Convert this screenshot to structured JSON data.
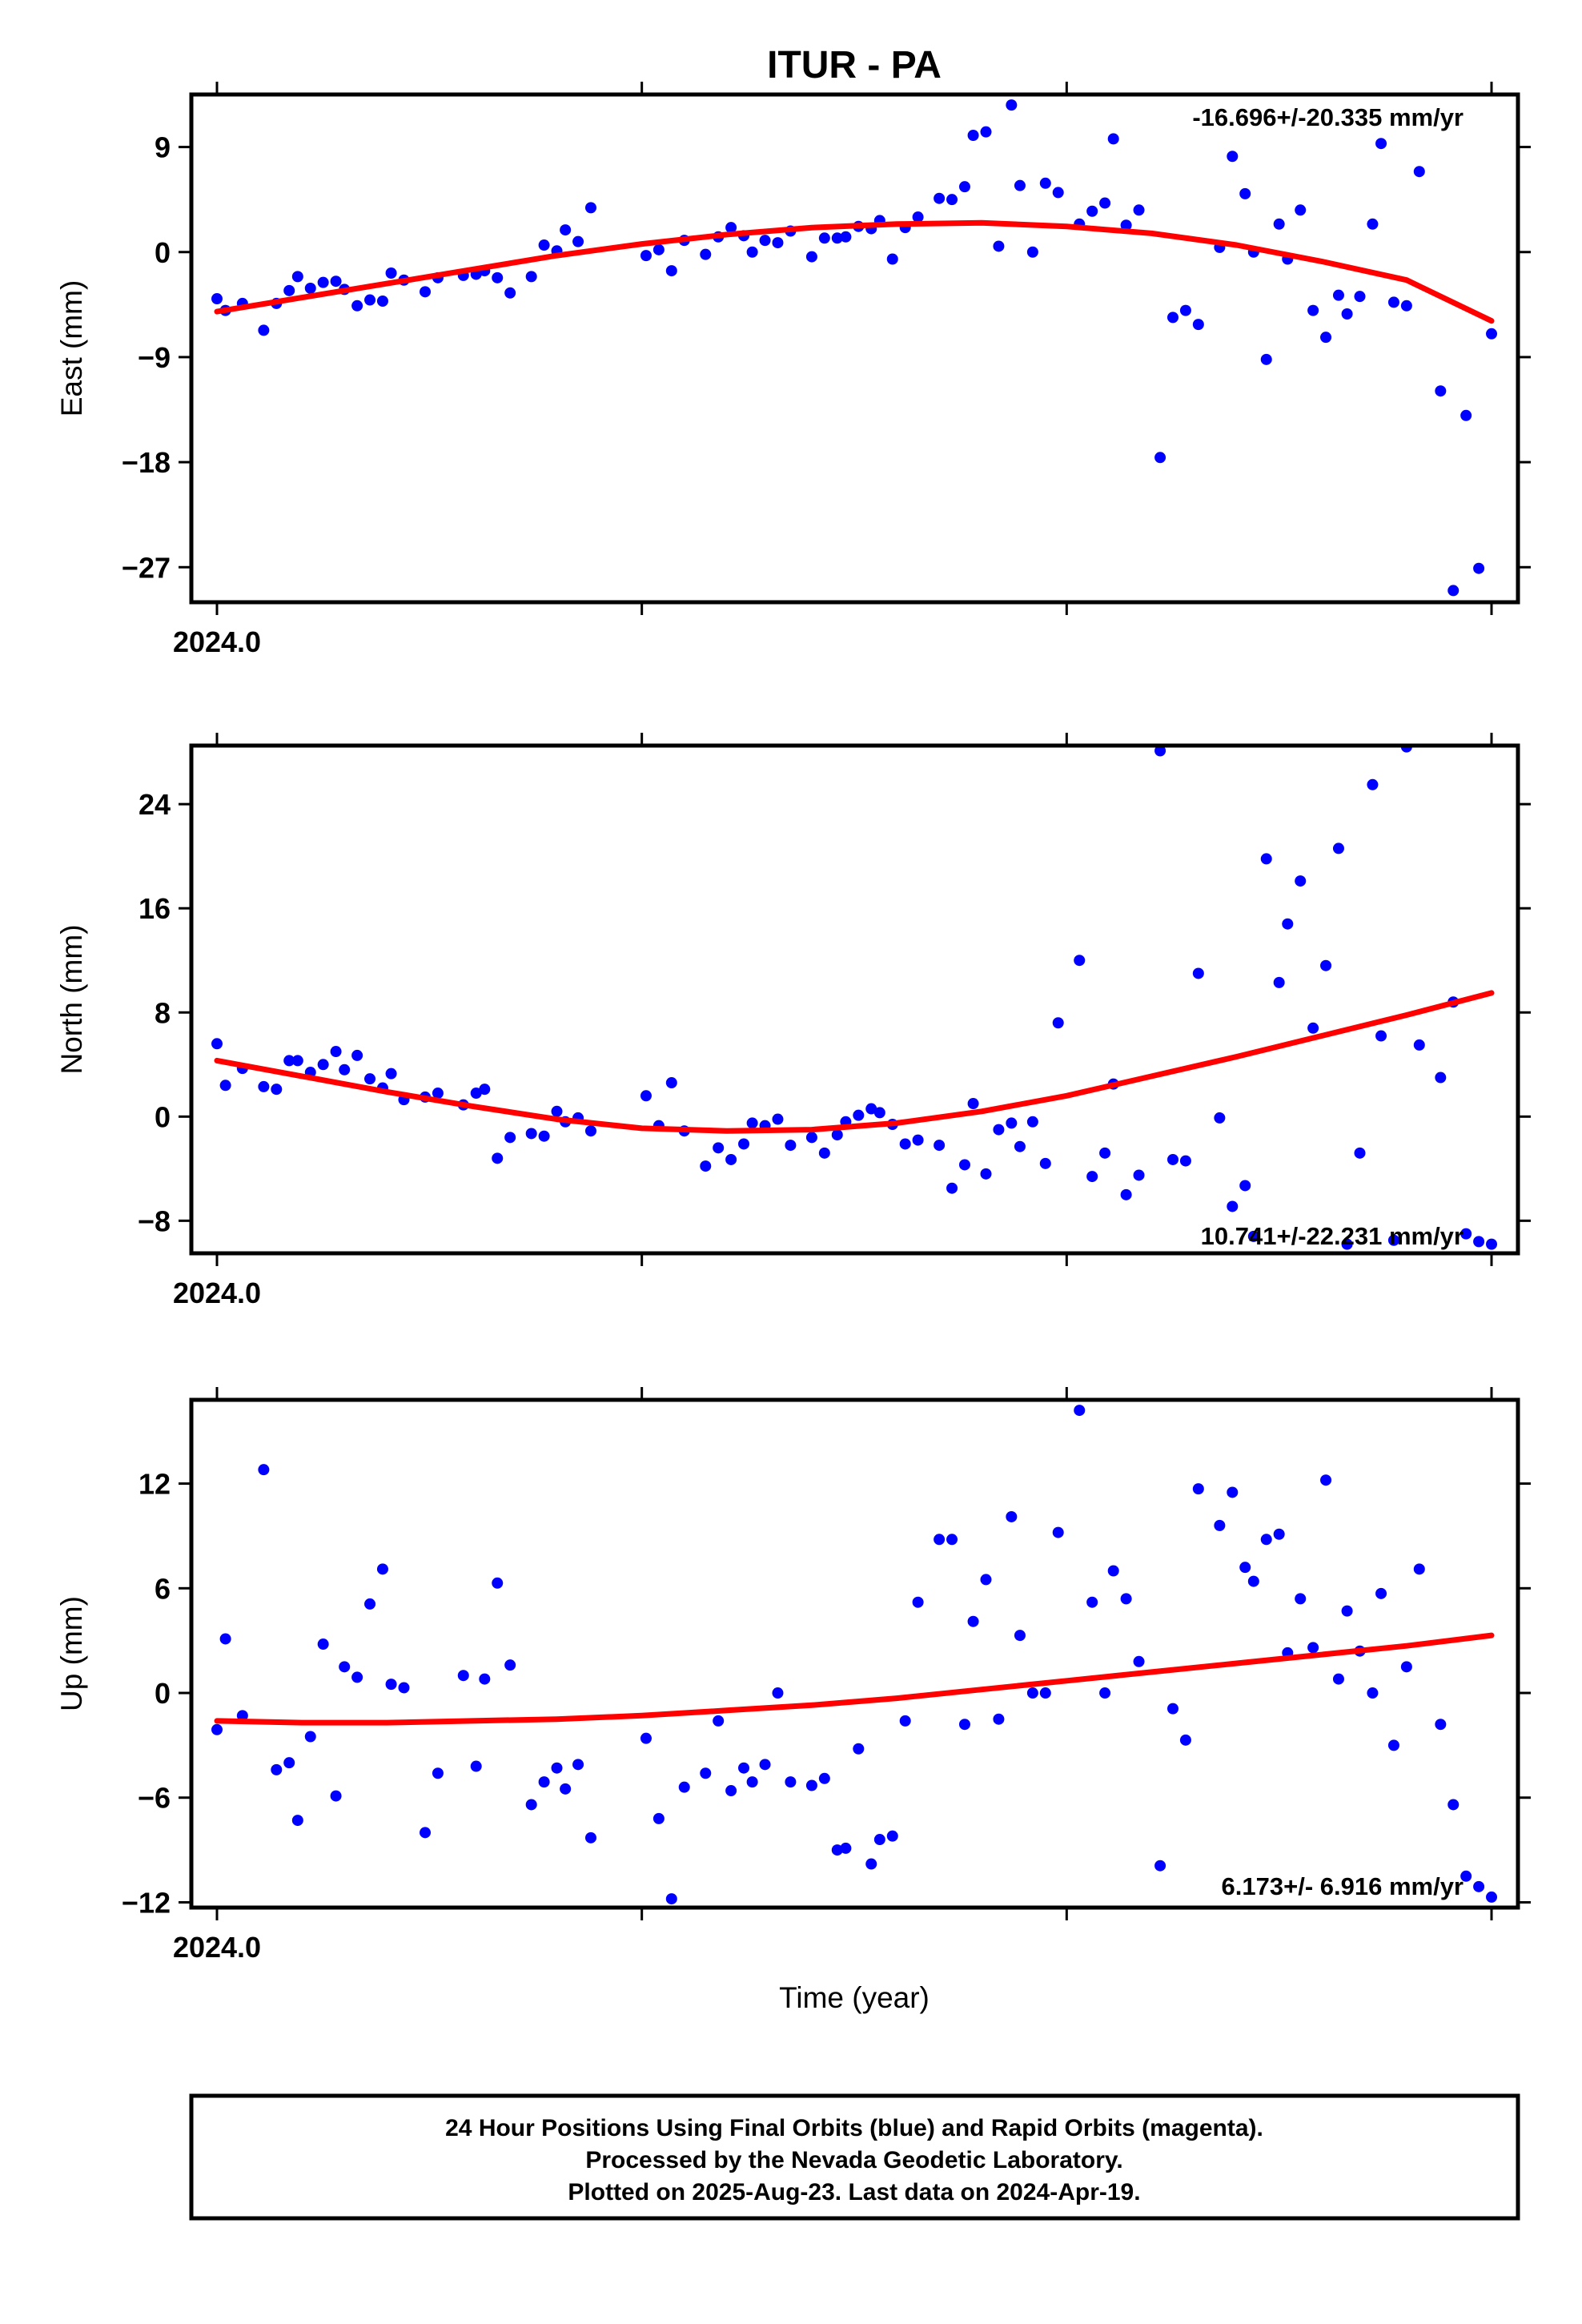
{
  "title": "ITUR - PA",
  "xlabel": "Time (year)",
  "colors": {
    "data": "#0000ff",
    "fit": "#ff0000",
    "frame": "#000000"
  },
  "footer": {
    "line1": "24 Hour Positions Using Final Orbits (blue) and Rapid Orbits (magenta).",
    "line2": "Processed by the Nevada Geodetic Laboratory.",
    "line3": "Plotted on 2025-Aug-23. Last data on 2024-Apr-19."
  },
  "chart_data": [
    {
      "type": "scatter",
      "ylabel": "East (mm)",
      "rate": "-16.696+/-20.335 mm/yr",
      "x_tick_label": "2024.0",
      "xlim": [
        2024.0,
        2024.3
      ],
      "ylim": [
        -30.0,
        13.5
      ],
      "yticks": [
        9,
        0,
        -9,
        -18,
        -27
      ],
      "ytick_labels": [
        "9",
        "0",
        "−9",
        "−18",
        "−27"
      ],
      "x": [
        2024.0,
        2024.002,
        2024.006,
        2024.011,
        2024.014,
        2024.017,
        2024.019,
        2024.022,
        2024.025,
        2024.028,
        2024.03,
        2024.033,
        2024.036,
        2024.039,
        2024.041,
        2024.044,
        2024.049,
        2024.052,
        2024.058,
        2024.061,
        2024.063,
        2024.066,
        2024.069,
        2024.074,
        2024.077,
        2024.08,
        2024.082,
        2024.085,
        2024.088,
        2024.101,
        2024.104,
        2024.107,
        2024.11,
        2024.115,
        2024.118,
        2024.121,
        2024.124,
        2024.126,
        2024.129,
        2024.132,
        2024.135,
        2024.14,
        2024.143,
        2024.146,
        2024.148,
        2024.151,
        2024.154,
        2024.156,
        2024.159,
        2024.162,
        2024.165,
        2024.17,
        2024.173,
        2024.176,
        2024.178,
        2024.181,
        2024.184,
        2024.187,
        2024.189,
        2024.192,
        2024.195,
        2024.198,
        2024.203,
        2024.206,
        2024.209,
        2024.211,
        2024.214,
        2024.217,
        2024.222,
        2024.225,
        2024.228,
        2024.231,
        2024.236,
        2024.239,
        2024.242,
        2024.244,
        2024.247,
        2024.25,
        2024.252,
        2024.255,
        2024.258,
        2024.261,
        2024.264,
        2024.266,
        2024.269,
        2024.272,
        2024.274,
        2024.277,
        2024.28,
        2024.283,
        2024.288,
        2024.291,
        2024.294,
        2024.297,
        2024.3
      ],
      "y": [
        -4.0,
        -5.0,
        -4.4,
        -6.7,
        -4.4,
        -3.3,
        -2.1,
        -3.1,
        -2.6,
        -2.5,
        -3.2,
        -4.6,
        -4.1,
        -4.2,
        -1.8,
        -2.4,
        -3.4,
        -2.2,
        -2.0,
        -1.9,
        -1.6,
        -2.2,
        -3.5,
        -2.1,
        0.6,
        0.1,
        1.9,
        0.9,
        3.8,
        -0.3,
        0.2,
        -1.6,
        1.0,
        -0.2,
        1.3,
        2.1,
        1.4,
        0.0,
        1.0,
        0.8,
        1.8,
        -0.4,
        1.2,
        1.2,
        1.3,
        2.2,
        2.0,
        2.7,
        -0.6,
        2.1,
        3.0,
        4.6,
        4.5,
        5.6,
        10.0,
        10.3,
        0.5,
        12.6,
        5.7,
        0.0,
        5.9,
        5.1,
        2.4,
        3.5,
        4.2,
        9.7,
        2.3,
        3.6,
        -17.6,
        -5.6,
        -5.0,
        -6.2,
        0.4,
        8.2,
        5.0,
        0.0,
        -9.2,
        2.4,
        -0.6,
        3.6,
        -5.0,
        -7.3,
        -3.7,
        -5.3,
        -3.8,
        2.4,
        9.3,
        -4.3,
        -4.6,
        6.9,
        -11.9,
        -29.0,
        -14.0,
        -27.1,
        -7.0
      ],
      "fit_x": [
        2024.0,
        2024.02,
        2024.04,
        2024.06,
        2024.08,
        2024.1,
        2024.12,
        2024.14,
        2024.16,
        2024.18,
        2024.2,
        2024.22,
        2024.24,
        2024.26,
        2024.28,
        2024.3
      ],
      "fit_y": [
        -5.1,
        -3.9,
        -2.7,
        -1.5,
        -0.3,
        0.7,
        1.5,
        2.1,
        2.4,
        2.5,
        2.2,
        1.6,
        0.6,
        -0.8,
        -2.4,
        -5.9
      ]
    },
    {
      "type": "scatter",
      "ylabel": "North (mm)",
      "rate": "10.741+/-22.231 mm/yr",
      "x_tick_label": "2024.0",
      "xlim": [
        2024.0,
        2024.3
      ],
      "ylim": [
        -10.5,
        28.5
      ],
      "yticks": [
        24,
        16,
        8,
        0,
        -8
      ],
      "ytick_labels": [
        "24",
        "16",
        "8",
        "0",
        "−8"
      ],
      "x": [
        2024.0,
        2024.002,
        2024.006,
        2024.011,
        2024.014,
        2024.017,
        2024.019,
        2024.022,
        2024.025,
        2024.028,
        2024.03,
        2024.033,
        2024.036,
        2024.039,
        2024.041,
        2024.044,
        2024.049,
        2024.052,
        2024.058,
        2024.061,
        2024.063,
        2024.066,
        2024.069,
        2024.074,
        2024.077,
        2024.08,
        2024.082,
        2024.085,
        2024.088,
        2024.101,
        2024.104,
        2024.107,
        2024.11,
        2024.115,
        2024.118,
        2024.121,
        2024.124,
        2024.126,
        2024.129,
        2024.132,
        2024.135,
        2024.14,
        2024.143,
        2024.146,
        2024.148,
        2024.151,
        2024.154,
        2024.156,
        2024.159,
        2024.162,
        2024.165,
        2024.17,
        2024.173,
        2024.176,
        2024.178,
        2024.181,
        2024.184,
        2024.187,
        2024.189,
        2024.192,
        2024.195,
        2024.198,
        2024.203,
        2024.206,
        2024.209,
        2024.211,
        2024.214,
        2024.217,
        2024.222,
        2024.225,
        2024.228,
        2024.231,
        2024.236,
        2024.239,
        2024.242,
        2024.244,
        2024.247,
        2024.25,
        2024.252,
        2024.255,
        2024.258,
        2024.261,
        2024.264,
        2024.266,
        2024.269,
        2024.272,
        2024.274,
        2024.277,
        2024.28,
        2024.283,
        2024.288,
        2024.291,
        2024.294,
        2024.297,
        2024.3
      ],
      "y": [
        5.6,
        2.4,
        3.7,
        2.3,
        2.1,
        4.3,
        4.3,
        3.4,
        4.0,
        5.0,
        3.6,
        4.7,
        2.9,
        2.2,
        3.3,
        1.3,
        1.5,
        1.8,
        0.9,
        1.8,
        2.1,
        -3.2,
        -1.6,
        -1.3,
        -1.5,
        0.4,
        -0.4,
        -0.1,
        -1.1,
        1.6,
        -0.7,
        2.6,
        -1.1,
        -3.8,
        -2.4,
        -3.3,
        -2.1,
        -0.5,
        -0.7,
        -0.2,
        -2.2,
        -1.6,
        -2.8,
        -1.4,
        -0.4,
        0.1,
        0.6,
        0.3,
        -0.6,
        -2.1,
        -1.8,
        -2.2,
        -5.5,
        -3.7,
        1.0,
        -4.4,
        -1.0,
        -0.5,
        -2.3,
        -0.4,
        -3.6,
        7.2,
        12.0,
        -4.6,
        -2.8,
        2.5,
        -6.0,
        -4.5,
        28.1,
        -3.3,
        -3.4,
        11.0,
        -0.1,
        -6.9,
        -5.3,
        -9.2,
        19.8,
        10.3,
        14.8,
        18.1,
        6.8,
        11.6,
        20.6,
        -9.8,
        -2.8,
        25.5,
        6.2,
        -9.5,
        28.4,
        5.5,
        3.0,
        8.8,
        -9.0,
        -9.6,
        -9.8
      ],
      "fit_x": [
        2024.0,
        2024.02,
        2024.04,
        2024.06,
        2024.08,
        2024.1,
        2024.12,
        2024.14,
        2024.16,
        2024.18,
        2024.2,
        2024.22,
        2024.24,
        2024.26,
        2024.28,
        2024.3
      ],
      "fit_y": [
        4.3,
        3.1,
        1.9,
        0.8,
        -0.2,
        -0.9,
        -1.1,
        -1.0,
        -0.5,
        0.4,
        1.6,
        3.1,
        4.6,
        6.2,
        7.8,
        9.5
      ]
    },
    {
      "type": "scatter",
      "ylabel": "Up (mm)",
      "rate": "6.173+/- 6.916 mm/yr",
      "x_tick_label": "2024.0",
      "xlim": [
        2024.0,
        2024.3
      ],
      "ylim": [
        -12.3,
        16.8
      ],
      "yticks": [
        12,
        6,
        0,
        -6,
        -12
      ],
      "ytick_labels": [
        "12",
        "6",
        "0",
        "−6",
        "−12"
      ],
      "x": [
        2024.0,
        2024.002,
        2024.006,
        2024.011,
        2024.014,
        2024.017,
        2024.019,
        2024.022,
        2024.025,
        2024.028,
        2024.03,
        2024.033,
        2024.036,
        2024.039,
        2024.041,
        2024.044,
        2024.049,
        2024.052,
        2024.058,
        2024.061,
        2024.063,
        2024.066,
        2024.069,
        2024.074,
        2024.077,
        2024.08,
        2024.082,
        2024.085,
        2024.088,
        2024.101,
        2024.104,
        2024.107,
        2024.11,
        2024.115,
        2024.118,
        2024.121,
        2024.124,
        2024.126,
        2024.129,
        2024.132,
        2024.135,
        2024.14,
        2024.143,
        2024.146,
        2024.148,
        2024.151,
        2024.154,
        2024.156,
        2024.159,
        2024.162,
        2024.165,
        2024.17,
        2024.173,
        2024.176,
        2024.178,
        2024.181,
        2024.184,
        2024.187,
        2024.189,
        2024.192,
        2024.195,
        2024.198,
        2024.203,
        2024.206,
        2024.209,
        2024.211,
        2024.214,
        2024.217,
        2024.222,
        2024.225,
        2024.228,
        2024.231,
        2024.236,
        2024.239,
        2024.242,
        2024.244,
        2024.247,
        2024.25,
        2024.252,
        2024.255,
        2024.258,
        2024.261,
        2024.264,
        2024.266,
        2024.269,
        2024.272,
        2024.274,
        2024.277,
        2024.28,
        2024.283,
        2024.288,
        2024.291,
        2024.294,
        2024.297,
        2024.3
      ],
      "y": [
        -2.1,
        3.1,
        -1.3,
        12.8,
        -4.4,
        -4.0,
        -7.3,
        -2.5,
        2.8,
        -5.9,
        1.5,
        0.9,
        5.1,
        7.1,
        0.5,
        0.3,
        -8.0,
        -4.6,
        1.0,
        -4.2,
        0.8,
        6.3,
        1.6,
        -6.4,
        -5.1,
        -4.3,
        -5.5,
        -4.1,
        -8.3,
        -2.6,
        -7.2,
        -11.8,
        -5.4,
        -4.6,
        -1.6,
        -5.6,
        -4.3,
        -5.1,
        -4.1,
        0.0,
        -5.1,
        -5.3,
        -4.9,
        -9.0,
        -8.9,
        -3.2,
        -9.8,
        -8.4,
        -8.2,
        -1.6,
        5.2,
        8.8,
        8.8,
        -1.8,
        4.1,
        6.5,
        -1.5,
        10.1,
        3.3,
        0.0,
        0.0,
        9.2,
        16.2,
        5.2,
        0.0,
        7.0,
        5.4,
        1.8,
        -9.9,
        -0.9,
        -2.7,
        11.7,
        9.6,
        11.5,
        7.2,
        6.4,
        8.8,
        9.1,
        2.3,
        5.4,
        2.6,
        12.2,
        0.8,
        4.7,
        2.4,
        0.0,
        5.7,
        -3.0,
        1.5,
        7.1,
        -1.8,
        -6.4,
        -10.5,
        -11.1,
        -11.7
      ],
      "fit_x": [
        2024.0,
        2024.02,
        2024.04,
        2024.06,
        2024.08,
        2024.1,
        2024.12,
        2024.14,
        2024.16,
        2024.18,
        2024.2,
        2024.22,
        2024.24,
        2024.26,
        2024.28,
        2024.3
      ],
      "fit_y": [
        -1.6,
        -1.7,
        -1.7,
        -1.6,
        -1.5,
        -1.3,
        -1.0,
        -0.7,
        -0.3,
        0.2,
        0.7,
        1.2,
        1.7,
        2.2,
        2.7,
        3.3
      ]
    }
  ]
}
